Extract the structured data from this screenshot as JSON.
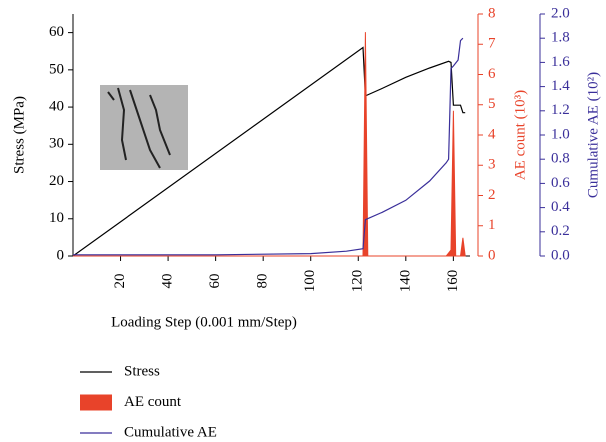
{
  "chart_data": {
    "type": "line",
    "xlabel": "Loading Step (0.001 mm/Step)",
    "ylabel": "Stress (MPa)",
    "y2label": "AE count (10³)",
    "y3label": "Cumulative AE (10²)",
    "xlim": [
      0,
      167
    ],
    "xticks": [
      20,
      40,
      60,
      80,
      100,
      120,
      140,
      160
    ],
    "ylim": [
      0,
      65
    ],
    "yticks": [
      0,
      10,
      20,
      30,
      40,
      50,
      60
    ],
    "y2lim": [
      0,
      8
    ],
    "y2ticks": [
      0,
      1,
      2,
      3,
      4,
      5,
      6,
      7,
      8
    ],
    "y2color": "#e8432a",
    "y3lim": [
      0,
      2
    ],
    "y3ticks": [
      {
        "value": 0,
        "label": "0.0"
      },
      {
        "value": 0.2,
        "label": "0.2"
      },
      {
        "value": 0.4,
        "label": "0.4"
      },
      {
        "value": 0.6,
        "label": "0.6"
      },
      {
        "value": 0.8,
        "label": "0.8"
      },
      {
        "value": 1,
        "label": "1.0"
      },
      {
        "value": 1.2,
        "label": "1.2"
      },
      {
        "value": 1.4,
        "label": "1.4"
      },
      {
        "value": 1.6,
        "label": "1.6"
      },
      {
        "value": 1.8,
        "label": "1.8"
      },
      {
        "value": 2,
        "label": "2.0"
      }
    ],
    "y3color": "#3a2f9a",
    "series": [
      {
        "name": "Stress",
        "kind": "line",
        "axis": "y",
        "color": "#000000",
        "x": [
          0,
          122,
          123,
          130,
          140,
          150,
          158,
          159,
          160,
          163,
          164,
          165
        ],
        "values": [
          0,
          56,
          43,
          45,
          48,
          50.5,
          52.3,
          52,
          40.5,
          40.5,
          38.5,
          38.5
        ]
      },
      {
        "name": "AE count",
        "kind": "area",
        "axis": "y2",
        "color": "#e8432a",
        "x": [
          0,
          121,
          122,
          123,
          124,
          125,
          157,
          158,
          159,
          160,
          161,
          162,
          163,
          164,
          165
        ],
        "values": [
          0,
          0,
          0,
          7.4,
          0,
          0,
          0,
          0.1,
          0.2,
          4.8,
          0,
          0,
          0,
          0.6,
          0
        ]
      },
      {
        "name": "Cumulative AE",
        "kind": "line",
        "axis": "y3",
        "color": "#3a2f9a",
        "x": [
          0,
          60,
          100,
          115,
          122,
          123,
          130,
          140,
          150,
          157,
          158,
          159,
          160,
          162,
          163,
          164
        ],
        "values": [
          0.01,
          0.01,
          0.02,
          0.04,
          0.06,
          0.3,
          0.36,
          0.46,
          0.62,
          0.77,
          0.8,
          1.55,
          1.57,
          1.62,
          1.78,
          1.8
        ]
      }
    ]
  }
}
